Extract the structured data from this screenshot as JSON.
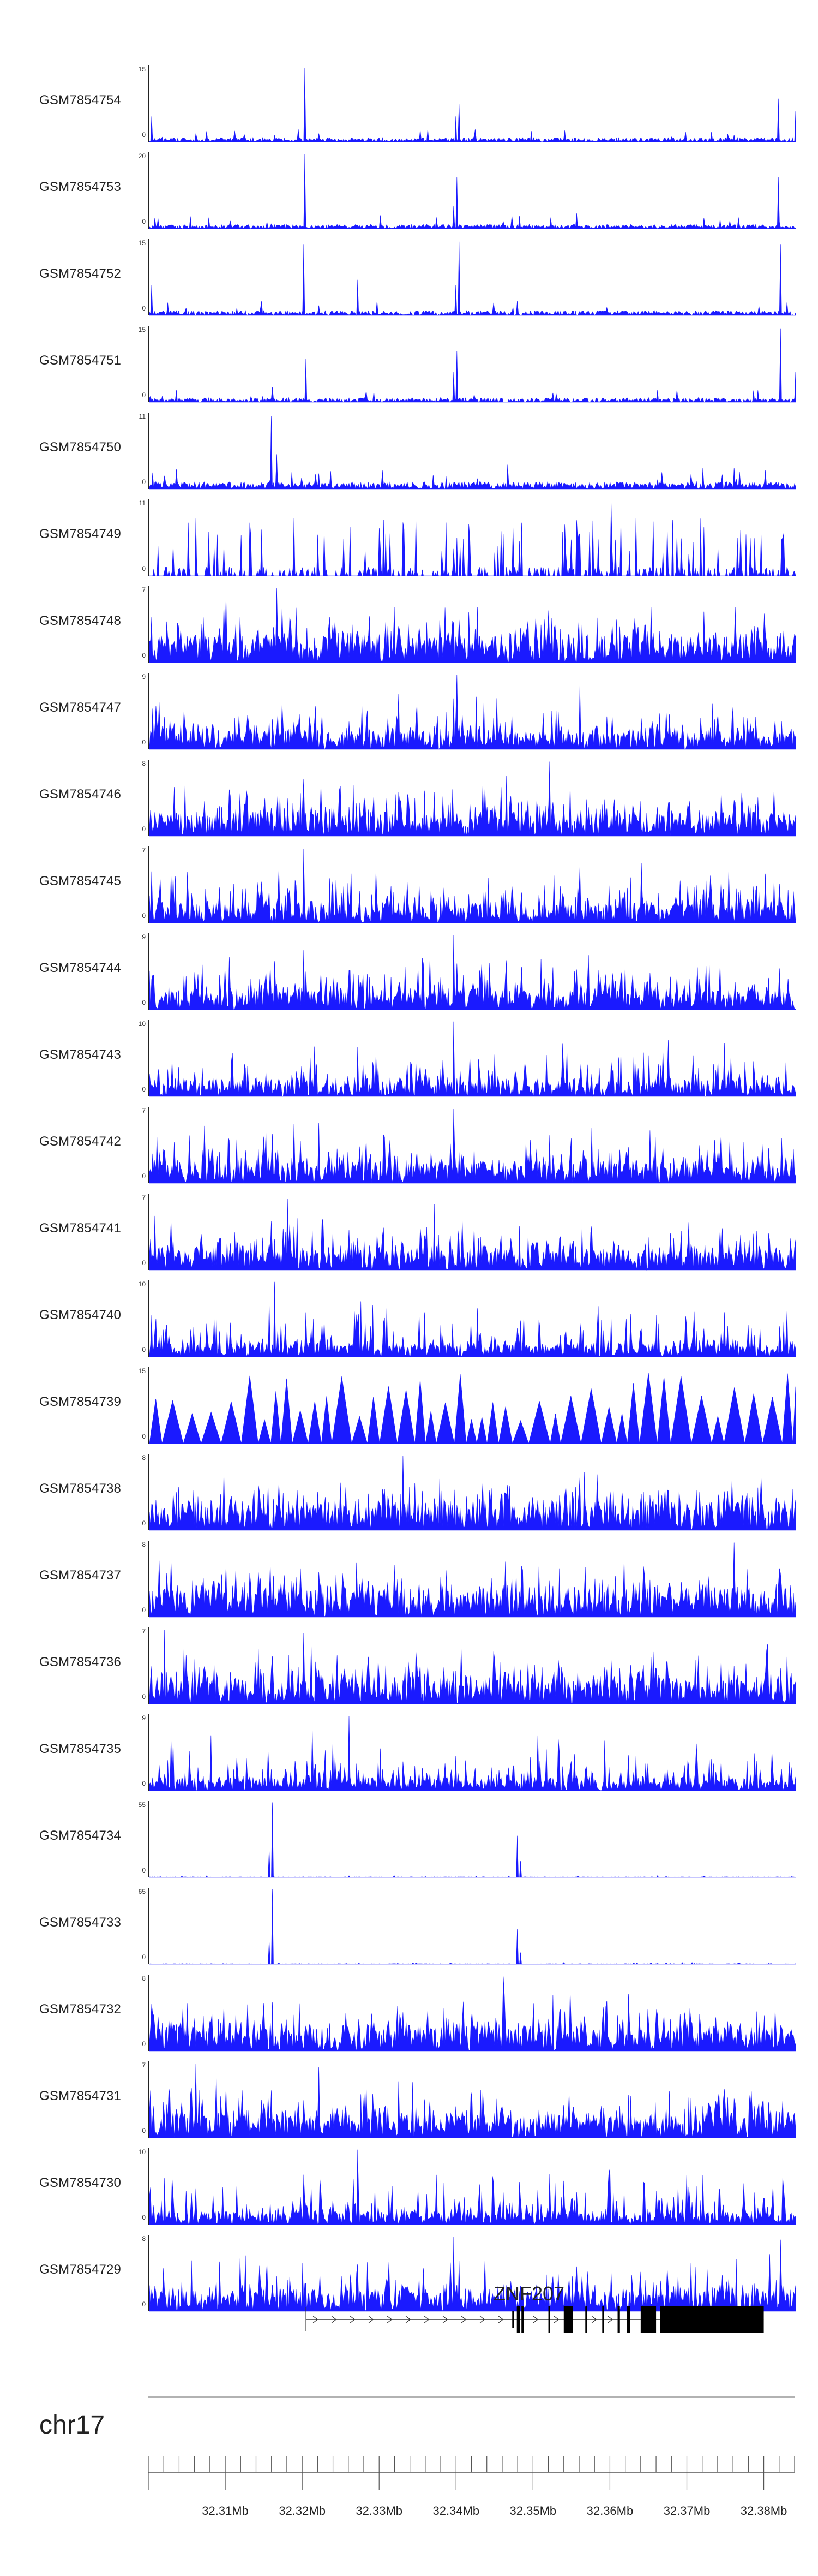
{
  "chart_data": {
    "type": "area",
    "chromosome": "chr17",
    "x_unit": "bp",
    "xlim": [
      32300000,
      32384000
    ],
    "ticks": [
      {
        "pos": 32310000,
        "label": "32.31Mb"
      },
      {
        "pos": 32320000,
        "label": "32.32Mb"
      },
      {
        "pos": 32330000,
        "label": "32.33Mb"
      },
      {
        "pos": 32340000,
        "label": "32.34Mb"
      },
      {
        "pos": 32350000,
        "label": "32.35Mb"
      },
      {
        "pos": 32360000,
        "label": "32.36Mb"
      },
      {
        "pos": 32370000,
        "label": "32.37Mb"
      },
      {
        "pos": 32380000,
        "label": "32.38Mb"
      }
    ],
    "series_color": "#1a1aff",
    "tracks": [
      {
        "name": "GSM7854754",
        "ymax": 15,
        "ymin": 0,
        "style": "a",
        "base": 0.07,
        "peaks": [
          [
            32320200,
            14.5
          ],
          [
            32340200,
            7.5
          ],
          [
            32339800,
            5
          ],
          [
            32381800,
            8.5
          ],
          [
            32384000,
            6
          ],
          [
            32300300,
            5
          ]
        ]
      },
      {
        "name": "GSM7854753",
        "ymax": 20,
        "ymin": 0,
        "style": "a",
        "base": 0.07,
        "peaks": [
          [
            32320200,
            19.5
          ],
          [
            32340000,
            13.5
          ],
          [
            32339600,
            6
          ],
          [
            32381800,
            13.5
          ],
          [
            32355500,
            4
          ],
          [
            32330000,
            3.5
          ]
        ]
      },
      {
        "name": "GSM7854752",
        "ymax": 15,
        "ymin": 0,
        "style": "a",
        "base": 0.08,
        "peaks": [
          [
            32320000,
            14
          ],
          [
            32340200,
            14.5
          ],
          [
            32339800,
            6
          ],
          [
            32382000,
            14
          ],
          [
            32327000,
            7
          ],
          [
            32300300,
            6
          ]
        ]
      },
      {
        "name": "GSM7854751",
        "ymax": 15,
        "ymin": 0,
        "style": "a",
        "base": 0.07,
        "peaks": [
          [
            32320400,
            8.5
          ],
          [
            32340000,
            10
          ],
          [
            32339600,
            6
          ],
          [
            32382000,
            14.5
          ],
          [
            32384000,
            6
          ],
          [
            32316000,
            3
          ]
        ]
      },
      {
        "name": "GSM7854750",
        "ymax": 11,
        "ymin": 0,
        "style": "a",
        "base": 0.12,
        "peaks": [
          [
            32315800,
            10.5
          ],
          [
            32316600,
            5
          ],
          [
            32346500,
            3.5
          ],
          [
            32372000,
            3
          ]
        ]
      },
      {
        "name": "GSM7854749",
        "ymax": 11,
        "ymin": 0,
        "style": "s",
        "base": 0.3,
        "peaks": [
          [
            32360000,
            10.5
          ],
          [
            32355500,
            8
          ]
        ]
      },
      {
        "name": "GSM7854748",
        "ymax": 7,
        "ymin": 0,
        "style": "d",
        "base": 0.42,
        "peaks": [
          [
            32316500,
            6.8
          ],
          [
            32310000,
            6
          ]
        ]
      },
      {
        "name": "GSM7854747",
        "ymax": 9,
        "ymin": 0,
        "style": "d",
        "base": 0.3,
        "peaks": [
          [
            32340000,
            8.8
          ],
          [
            32339500,
            6
          ],
          [
            32356000,
            7.5
          ]
        ]
      },
      {
        "name": "GSM7854746",
        "ymax": 8,
        "ymin": 0,
        "style": "d",
        "base": 0.38,
        "peaks": [
          [
            32352000,
            7.8
          ],
          [
            32320000,
            6
          ]
        ]
      },
      {
        "name": "GSM7854745",
        "ymax": 7,
        "ymin": 0,
        "style": "d",
        "base": 0.32,
        "peaks": [
          [
            32320000,
            6.8
          ],
          [
            32364000,
            5.5
          ]
        ]
      },
      {
        "name": "GSM7854744",
        "ymax": 9,
        "ymin": 0,
        "style": "d",
        "base": 0.32,
        "peaks": [
          [
            32339500,
            8.8
          ],
          [
            32320000,
            7
          ]
        ]
      },
      {
        "name": "GSM7854743",
        "ymax": 10,
        "ymin": 0,
        "style": "d",
        "base": 0.25,
        "peaks": [
          [
            32339500,
            9.8
          ]
        ]
      },
      {
        "name": "GSM7854742",
        "ymax": 7,
        "ymin": 0,
        "style": "d",
        "base": 0.35,
        "peaks": [
          [
            32339500,
            6.8
          ],
          [
            32322000,
            5.5
          ]
        ]
      },
      {
        "name": "GSM7854741",
        "ymax": 7,
        "ymin": 0,
        "style": "d",
        "base": 0.33,
        "peaks": [
          [
            32318000,
            6.5
          ],
          [
            32337000,
            6
          ]
        ]
      },
      {
        "name": "GSM7854740",
        "ymax": 10,
        "ymin": 0,
        "style": "d",
        "base": 0.22,
        "peaks": [
          [
            32316300,
            9.8
          ],
          [
            32315500,
            7
          ],
          [
            32360000,
            5
          ]
        ]
      },
      {
        "name": "GSM7854739",
        "ymax": 15,
        "ymin": 0,
        "style": "t",
        "base": 0.3,
        "peaks": []
      },
      {
        "name": "GSM7854738",
        "ymax": 8,
        "ymin": 0,
        "style": "d",
        "base": 0.45,
        "peaks": [
          [
            32333000,
            7.8
          ]
        ]
      },
      {
        "name": "GSM7854737",
        "ymax": 8,
        "ymin": 0,
        "style": "d",
        "base": 0.45,
        "peaks": [
          [
            32376000,
            7.8
          ]
        ]
      },
      {
        "name": "GSM7854736",
        "ymax": 7,
        "ymin": 0,
        "style": "d",
        "base": 0.4,
        "peaks": [
          [
            32302000,
            6.8
          ],
          [
            32320000,
            6.5
          ]
        ]
      },
      {
        "name": "GSM7854735",
        "ymax": 9,
        "ymin": 0,
        "style": "d",
        "base": 0.22,
        "peaks": [
          [
            32326000,
            8.8
          ],
          [
            32350500,
            6.5
          ]
        ]
      },
      {
        "name": "GSM7854734",
        "ymax": 55,
        "ymin": 0,
        "style": "a",
        "base": 0.01,
        "peaks": [
          [
            32316000,
            54
          ],
          [
            32315600,
            20
          ],
          [
            32347800,
            30
          ],
          [
            32348200,
            12
          ]
        ]
      },
      {
        "name": "GSM7854733",
        "ymax": 65,
        "ymin": 0,
        "style": "a",
        "base": 0.01,
        "peaks": [
          [
            32316000,
            64
          ],
          [
            32315600,
            20
          ],
          [
            32347800,
            30
          ],
          [
            32348200,
            10
          ]
        ]
      },
      {
        "name": "GSM7854732",
        "ymax": 8,
        "ymin": 0,
        "style": "d",
        "base": 0.4,
        "peaks": [
          [
            32346000,
            7.8
          ]
        ]
      },
      {
        "name": "GSM7854731",
        "ymax": 7,
        "ymin": 0,
        "style": "d",
        "base": 0.38,
        "peaks": [
          [
            32306000,
            6.8
          ],
          [
            32322000,
            6.5
          ]
        ]
      },
      {
        "name": "GSM7854730",
        "ymax": 10,
        "ymin": 0,
        "style": "d",
        "base": 0.22,
        "peaks": [
          [
            32327000,
            9.8
          ],
          [
            32326500,
            6
          ],
          [
            32381000,
            5
          ]
        ]
      },
      {
        "name": "GSM7854729",
        "ymax": 8,
        "ymin": 0,
        "style": "d",
        "base": 0.35,
        "peaks": [
          [
            32339500,
            7.8
          ],
          [
            32382000,
            7.5
          ]
        ]
      }
    ],
    "gene": {
      "name": "ZNF207",
      "strand": "+",
      "start": 32320500,
      "end": 32380000,
      "exons": [
        [
          32347300,
          32347500
        ],
        [
          32347900,
          32348300
        ],
        [
          32348500,
          32348800
        ],
        [
          32352000,
          32352200
        ],
        [
          32354000,
          32355200
        ],
        [
          32356800,
          32357000
        ],
        [
          32359000,
          32359200
        ],
        [
          32361000,
          32361300
        ],
        [
          32362200,
          32362600
        ],
        [
          32364000,
          32366000
        ],
        [
          32366500,
          32380000
        ]
      ],
      "thick_start": 32347900,
      "thick_end": 32380000
    }
  }
}
